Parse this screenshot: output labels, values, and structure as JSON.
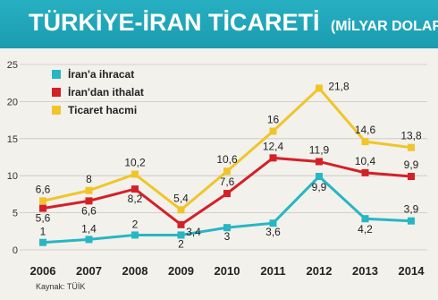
{
  "header": {
    "title": "TÜRKİYE-İRAN TİCARETİ",
    "subtitle": "(MİLYAR DOLAR)"
  },
  "source": "Kaynak: TÜİK",
  "colors": {
    "header_bg": "#1fa6b9",
    "plot_bg": "#f3f1ec"
  },
  "chart_data": {
    "type": "line",
    "title": "TÜRKİYE-İRAN TİCARETİ",
    "subtitle": "(MİLYAR DOLAR)",
    "x": [
      "2006",
      "2007",
      "2008",
      "2009",
      "2010",
      "2011",
      "2012",
      "2013",
      "2014"
    ],
    "ylim": [
      0,
      25
    ],
    "yticks": [
      "0",
      "5",
      "10",
      "15",
      "20",
      "25"
    ],
    "grid": true,
    "legend": "top-left",
    "series": [
      {
        "name": "İran'a ihracat",
        "color": "#27b6c4",
        "values": [
          1,
          1.4,
          2,
          2,
          3,
          3.6,
          9.9,
          4.2,
          3.9
        ],
        "labels": [
          "1",
          "1,4",
          "2",
          "2",
          "3",
          "3,6",
          "9,9",
          "4,2",
          "3,9"
        ]
      },
      {
        "name": "İran'dan ithalat",
        "color": "#d42027",
        "values": [
          5.6,
          6.6,
          8.2,
          3.4,
          7.6,
          12.4,
          11.9,
          10.4,
          9.9
        ],
        "labels": [
          "5,6",
          "6,6",
          "8,2",
          "3,4",
          "7,6",
          "12,4",
          "11,9",
          "10,4",
          "9,9"
        ]
      },
      {
        "name": "Ticaret hacmi",
        "color": "#f0c52a",
        "values": [
          6.6,
          8,
          10.2,
          5.4,
          10.6,
          16,
          21.8,
          14.6,
          13.8
        ],
        "labels": [
          "6,6",
          "8",
          "10,2",
          "5,4",
          "10,6",
          "16",
          "21,8",
          "14,6",
          "13,8"
        ]
      }
    ]
  }
}
